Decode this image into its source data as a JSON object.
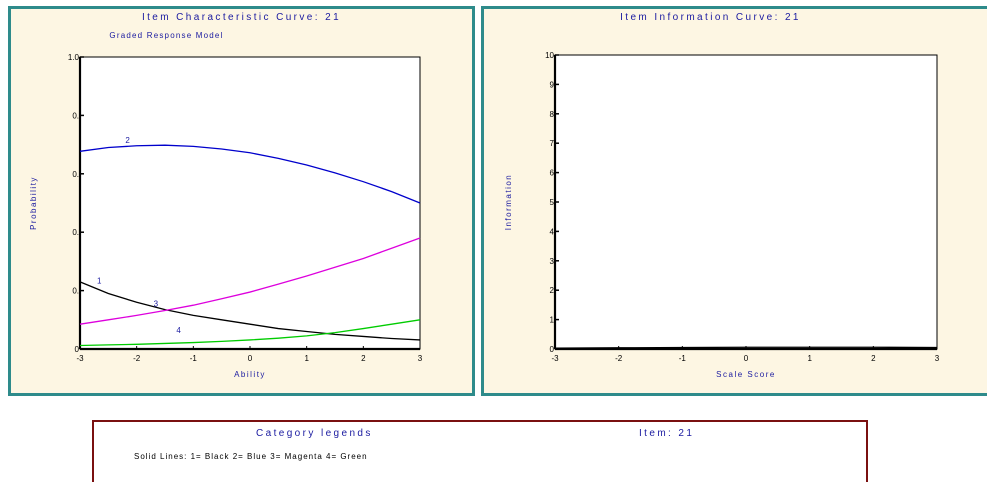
{
  "chart_data": [
    {
      "type": "line",
      "title": "Item Characteristic Curve: 21",
      "subtitle": "Graded Response Model",
      "xlabel": "Ability",
      "ylabel": "Probability",
      "xlim": [
        -3,
        3
      ],
      "ylim": [
        0,
        1.0
      ],
      "xticks": [
        "-3",
        "-2",
        "-1",
        "0",
        "1",
        "2",
        "3"
      ],
      "yticks": [
        {
          "v": 0,
          "label": "0"
        },
        {
          "v": 0.2,
          "label": "0."
        },
        {
          "v": 0.4,
          "label": "0."
        },
        {
          "v": 0.6,
          "label": "0."
        },
        {
          "v": 0.8,
          "label": "0."
        },
        {
          "v": 1.0,
          "label": "1.0"
        }
      ],
      "x": [
        -3,
        -2.5,
        -2,
        -1.5,
        -1,
        -0.5,
        0,
        0.5,
        1,
        1.5,
        2,
        2.5,
        3
      ],
      "series": [
        {
          "name": "1",
          "color": "#000000",
          "label_x": -2.7,
          "label_y": 0.225,
          "values": [
            0.23,
            0.19,
            0.16,
            0.135,
            0.115,
            0.1,
            0.085,
            0.07,
            0.06,
            0.05,
            0.043,
            0.036,
            0.031
          ]
        },
        {
          "name": "2",
          "color": "#0000cc",
          "label_x": -2.2,
          "label_y": 0.705,
          "values": [
            0.677,
            0.69,
            0.696,
            0.698,
            0.694,
            0.685,
            0.672,
            0.653,
            0.63,
            0.603,
            0.573,
            0.539,
            0.5
          ]
        },
        {
          "name": "3",
          "color": "#dd00dd",
          "label_x": -1.7,
          "label_y": 0.145,
          "values": [
            0.085,
            0.1,
            0.115,
            0.132,
            0.15,
            0.172,
            0.195,
            0.222,
            0.25,
            0.28,
            0.31,
            0.345,
            0.38
          ]
        },
        {
          "name": "4",
          "color": "#00cc00",
          "label_x": -1.3,
          "label_y": 0.055,
          "values": [
            0.012,
            0.014,
            0.016,
            0.019,
            0.022,
            0.026,
            0.031,
            0.037,
            0.045,
            0.056,
            0.07,
            0.085,
            0.1
          ]
        }
      ]
    },
    {
      "type": "line",
      "title": "Item Information Curve: 21",
      "xlabel": "Scale Score",
      "ylabel": "Information",
      "xlim": [
        -3,
        3
      ],
      "ylim": [
        0,
        10
      ],
      "xticks": [
        "-3",
        "-2",
        "-1",
        "0",
        "1",
        "2",
        "3"
      ],
      "yticks": [
        {
          "v": 0,
          "label": "0"
        },
        {
          "v": 1,
          "label": "1"
        },
        {
          "v": 2,
          "label": "2"
        },
        {
          "v": 3,
          "label": "3"
        },
        {
          "v": 4,
          "label": "4"
        },
        {
          "v": 5,
          "label": "5"
        },
        {
          "v": 6,
          "label": "6"
        },
        {
          "v": 7,
          "label": "7"
        },
        {
          "v": 8,
          "label": "8"
        },
        {
          "v": 9,
          "label": "9"
        },
        {
          "v": 10,
          "label": "10"
        }
      ],
      "x": [
        -3,
        -2,
        -1,
        0,
        1,
        2,
        3
      ],
      "series": [
        {
          "color": "#000000",
          "values": [
            0.03,
            0.04,
            0.05,
            0.06,
            0.06,
            0.06,
            0.05
          ]
        }
      ]
    }
  ],
  "legend_box": {
    "title": "Category legends",
    "item": "Item: 21",
    "line": "Solid Lines: 1= Black  2= Blue  3= Magenta  4= Green"
  },
  "colors": {
    "panel_bg": "#fdf6e3",
    "panel_border": "#2e8b8b",
    "legend_border": "#7a1010",
    "title_text": "#1a1aa0"
  }
}
